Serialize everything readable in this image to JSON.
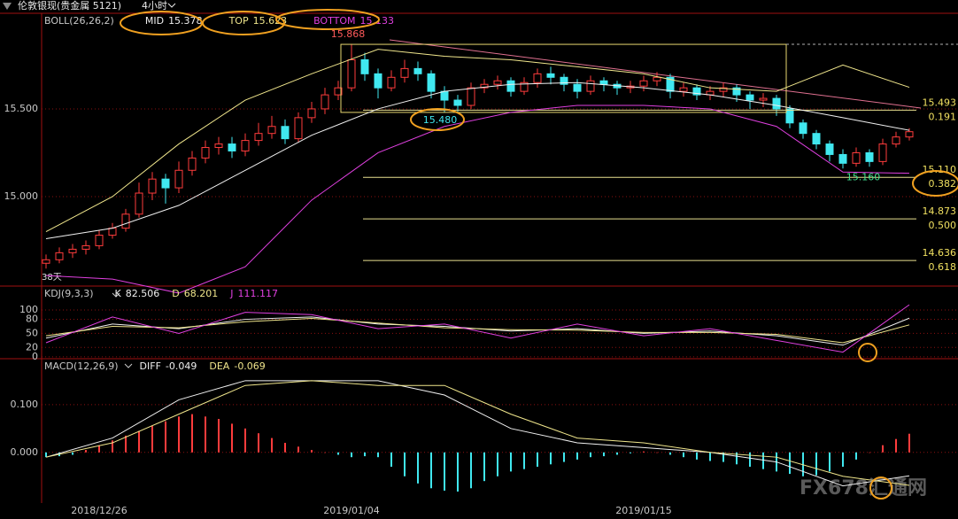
{
  "header": {
    "title": "伦敦银现(贵金属 5121)",
    "period": "4小时"
  },
  "watermark": "FX678汇通网",
  "chart_data": [
    {
      "type": "candlestick",
      "indicator": "BOLL(26,26,2)",
      "up_color": "#ff3c3c",
      "down_color": "#40e8f0",
      "candles": [
        [
          14.62,
          14.67,
          14.59,
          14.64
        ],
        [
          14.64,
          14.71,
          14.62,
          14.68
        ],
        [
          14.68,
          14.73,
          14.65,
          14.7
        ],
        [
          14.7,
          14.75,
          14.67,
          14.72
        ],
        [
          14.72,
          14.81,
          14.7,
          14.78
        ],
        [
          14.78,
          14.85,
          14.76,
          14.82
        ],
        [
          14.82,
          14.93,
          14.8,
          14.9
        ],
        [
          14.9,
          15.08,
          14.88,
          15.02
        ],
        [
          15.02,
          15.14,
          14.98,
          15.1
        ],
        [
          15.1,
          15.13,
          14.96,
          15.05
        ],
        [
          15.05,
          15.2,
          15.02,
          15.15
        ],
        [
          15.15,
          15.26,
          15.12,
          15.22
        ],
        [
          15.22,
          15.32,
          15.19,
          15.28
        ],
        [
          15.28,
          15.34,
          15.24,
          15.3
        ],
        [
          15.3,
          15.34,
          15.22,
          15.26
        ],
        [
          15.26,
          15.36,
          15.23,
          15.32
        ],
        [
          15.32,
          15.42,
          15.29,
          15.36
        ],
        [
          15.36,
          15.46,
          15.33,
          15.4
        ],
        [
          15.4,
          15.44,
          15.3,
          15.33
        ],
        [
          15.33,
          15.48,
          15.31,
          15.45
        ],
        [
          15.45,
          15.54,
          15.42,
          15.5
        ],
        [
          15.5,
          15.62,
          15.47,
          15.58
        ],
        [
          15.58,
          15.66,
          15.55,
          15.62
        ],
        [
          15.62,
          15.87,
          15.6,
          15.78
        ],
        [
          15.78,
          15.82,
          15.66,
          15.7
        ],
        [
          15.7,
          15.73,
          15.56,
          15.62
        ],
        [
          15.62,
          15.72,
          15.6,
          15.68
        ],
        [
          15.68,
          15.78,
          15.65,
          15.73
        ],
        [
          15.73,
          15.77,
          15.66,
          15.7
        ],
        [
          15.7,
          15.72,
          15.56,
          15.6
        ],
        [
          15.6,
          15.63,
          15.48,
          15.55
        ],
        [
          15.55,
          15.58,
          15.48,
          15.52
        ],
        [
          15.52,
          15.65,
          15.5,
          15.62
        ],
        [
          15.62,
          15.67,
          15.59,
          15.64
        ],
        [
          15.64,
          15.69,
          15.61,
          15.66
        ],
        [
          15.66,
          15.68,
          15.57,
          15.6
        ],
        [
          15.6,
          15.68,
          15.58,
          15.65
        ],
        [
          15.65,
          15.73,
          15.62,
          15.7
        ],
        [
          15.7,
          15.74,
          15.64,
          15.68
        ],
        [
          15.68,
          15.7,
          15.6,
          15.64
        ],
        [
          15.64,
          15.67,
          15.56,
          15.6
        ],
        [
          15.6,
          15.69,
          15.58,
          15.66
        ],
        [
          15.66,
          15.68,
          15.6,
          15.64
        ],
        [
          15.64,
          15.66,
          15.58,
          15.62
        ],
        [
          15.62,
          15.66,
          15.59,
          15.63
        ],
        [
          15.63,
          15.69,
          15.6,
          15.66
        ],
        [
          15.66,
          15.71,
          15.63,
          15.68
        ],
        [
          15.68,
          15.7,
          15.56,
          15.6
        ],
        [
          15.6,
          15.65,
          15.57,
          15.62
        ],
        [
          15.62,
          15.64,
          15.55,
          15.58
        ],
        [
          15.58,
          15.63,
          15.55,
          15.6
        ],
        [
          15.6,
          15.65,
          15.57,
          15.62
        ],
        [
          15.62,
          15.64,
          15.54,
          15.58
        ],
        [
          15.58,
          15.6,
          15.5,
          15.55
        ],
        [
          15.55,
          15.59,
          15.51,
          15.56
        ],
        [
          15.56,
          15.58,
          15.46,
          15.5
        ],
        [
          15.5,
          15.52,
          15.39,
          15.42
        ],
        [
          15.42,
          15.44,
          15.33,
          15.36
        ],
        [
          15.36,
          15.38,
          15.27,
          15.3
        ],
        [
          15.3,
          15.32,
          15.2,
          15.24
        ],
        [
          15.24,
          15.27,
          15.16,
          15.19
        ],
        [
          15.19,
          15.28,
          15.17,
          15.25
        ],
        [
          15.25,
          15.27,
          15.17,
          15.2
        ],
        [
          15.2,
          15.33,
          15.18,
          15.3
        ],
        [
          15.3,
          15.37,
          15.28,
          15.34
        ],
        [
          15.34,
          15.39,
          15.32,
          15.37
        ]
      ],
      "x": [
        0,
        5,
        10,
        15,
        20,
        25,
        30,
        35,
        40,
        45,
        50,
        55,
        60,
        65
      ],
      "series": [
        {
          "name": "MID",
          "color": "#f0f0f0",
          "values": [
            14.76,
            14.82,
            14.95,
            15.15,
            15.35,
            15.5,
            15.6,
            15.64,
            15.65,
            15.62,
            15.58,
            15.52,
            15.45,
            15.378
          ]
        },
        {
          "name": "TOP",
          "color": "#f0e68c",
          "values": [
            14.8,
            15.0,
            15.3,
            15.55,
            15.7,
            15.84,
            15.8,
            15.78,
            15.74,
            15.7,
            15.62,
            15.6,
            15.75,
            15.623
          ]
        },
        {
          "name": "BOTTOM",
          "color": "#e040e0",
          "values": [
            14.55,
            14.53,
            14.45,
            14.6,
            14.98,
            15.25,
            15.4,
            15.48,
            15.52,
            15.52,
            15.5,
            15.4,
            15.14,
            15.133
          ]
        }
      ],
      "ylim": [
        14.49,
        16.045
      ],
      "yticks": [
        {
          "value": 15.5,
          "label": "15.500"
        },
        {
          "value": 15.0,
          "label": "15.000"
        }
      ],
      "grid": true,
      "annotations": [
        {
          "value": 15.868,
          "label": "15.868",
          "color": "#ff5a5a"
        },
        {
          "value": 15.48,
          "label": "15.480",
          "color": "#40e8f0"
        },
        {
          "value": 15.16,
          "label": "15.160",
          "color": "#40e090"
        }
      ],
      "fib_levels": [
        {
          "price": {
            "value": 15.493,
            "label": "15.493"
          },
          "ratio": {
            "value": 0.191,
            "label": "0.191"
          }
        },
        {
          "price": {
            "value": 15.11,
            "label": "15.110"
          },
          "ratio": {
            "value": 0.382,
            "label": "0.382"
          }
        },
        {
          "price": {
            "value": 14.873,
            "label": "14.873"
          },
          "ratio": {
            "value": 0.5,
            "label": "0.500"
          }
        },
        {
          "price": {
            "value": 14.636,
            "label": "14.636"
          },
          "ratio": {
            "value": 0.618,
            "label": "0.618"
          }
        }
      ],
      "note": "38天"
    },
    {
      "type": "line",
      "indicator": "KDJ(9,3,3)",
      "x": [
        0,
        5,
        10,
        15,
        20,
        25,
        30,
        35,
        40,
        45,
        50,
        55,
        60,
        65
      ],
      "series": [
        {
          "name": "K",
          "color": "#f0f0f0",
          "values": [
            40,
            70,
            60,
            80,
            85,
            70,
            65,
            55,
            60,
            50,
            55,
            45,
            25,
            82.506
          ]
        },
        {
          "name": "D",
          "color": "#f0e68c",
          "values": [
            45,
            65,
            62,
            75,
            82,
            72,
            62,
            58,
            57,
            52,
            52,
            48,
            30,
            68.201
          ]
        },
        {
          "name": "J",
          "color": "#e040e0",
          "values": [
            30,
            85,
            50,
            95,
            90,
            60,
            70,
            40,
            70,
            45,
            60,
            35,
            10,
            111.117
          ]
        }
      ],
      "ylim": [
        -4,
        151
      ],
      "yticks": [
        100,
        80,
        50,
        20,
        0
      ],
      "grid": true
    },
    {
      "type": "macd",
      "indicator": "MACD(12,26,9)",
      "up_color": "#ff3c3c",
      "down_color": "#40e8f0",
      "histogram": [
        -0.01,
        -0.008,
        -0.005,
        0.005,
        0.015,
        0.025,
        0.035,
        0.045,
        0.055,
        0.065,
        0.075,
        0.08,
        0.075,
        0.07,
        0.06,
        0.05,
        0.04,
        0.03,
        0.02,
        0.012,
        0.005,
        0.0,
        -0.005,
        -0.01,
        -0.008,
        -0.01,
        -0.03,
        -0.05,
        -0.065,
        -0.075,
        -0.08,
        -0.082,
        -0.075,
        -0.06,
        -0.05,
        -0.04,
        -0.035,
        -0.03,
        -0.025,
        -0.02,
        -0.015,
        -0.01,
        -0.008,
        -0.005,
        -0.002,
        0.002,
        0.0,
        -0.005,
        -0.01,
        -0.015,
        -0.018,
        -0.02,
        -0.025,
        -0.03,
        -0.035,
        -0.04,
        -0.045,
        -0.05,
        -0.048,
        -0.04,
        -0.03,
        -0.015,
        0.0,
        0.015,
        0.028,
        0.039
      ],
      "x": [
        0,
        5,
        10,
        15,
        20,
        25,
        30,
        35,
        40,
        45,
        50,
        55,
        60,
        65
      ],
      "series": [
        {
          "name": "DIFF",
          "color": "#f0f0f0",
          "values": [
            -0.01,
            0.03,
            0.11,
            0.15,
            0.15,
            0.15,
            0.12,
            0.05,
            0.02,
            0.01,
            0.0,
            -0.02,
            -0.07,
            -0.049
          ]
        },
        {
          "name": "DEA",
          "color": "#f0e68c",
          "values": [
            -0.01,
            0.02,
            0.08,
            0.14,
            0.15,
            0.14,
            0.14,
            0.08,
            0.03,
            0.02,
            0.0,
            -0.01,
            -0.05,
            -0.069
          ]
        }
      ],
      "ylim": [
        -0.106,
        0.196
      ],
      "yticks": [
        {
          "value": 0.1,
          "label": "0.100"
        },
        {
          "value": 0,
          "label": "0.000"
        }
      ],
      "grid": true,
      "categories": [
        null,
        null,
        null,
        null,
        "2018/12/26",
        null,
        null,
        null,
        null,
        null,
        null,
        null,
        null,
        null,
        null,
        null,
        null,
        null,
        null,
        null,
        null,
        null,
        null,
        "2019/01/04",
        null,
        null,
        null,
        null,
        null,
        null,
        null,
        null,
        null,
        null,
        null,
        null,
        null,
        null,
        null,
        null,
        null,
        null,
        null,
        null,
        null,
        "2019/01/15",
        null,
        null,
        null,
        null,
        null,
        null,
        null,
        null,
        null,
        null,
        null,
        null,
        null,
        null,
        null,
        null,
        null,
        null,
        null,
        null
      ]
    }
  ]
}
